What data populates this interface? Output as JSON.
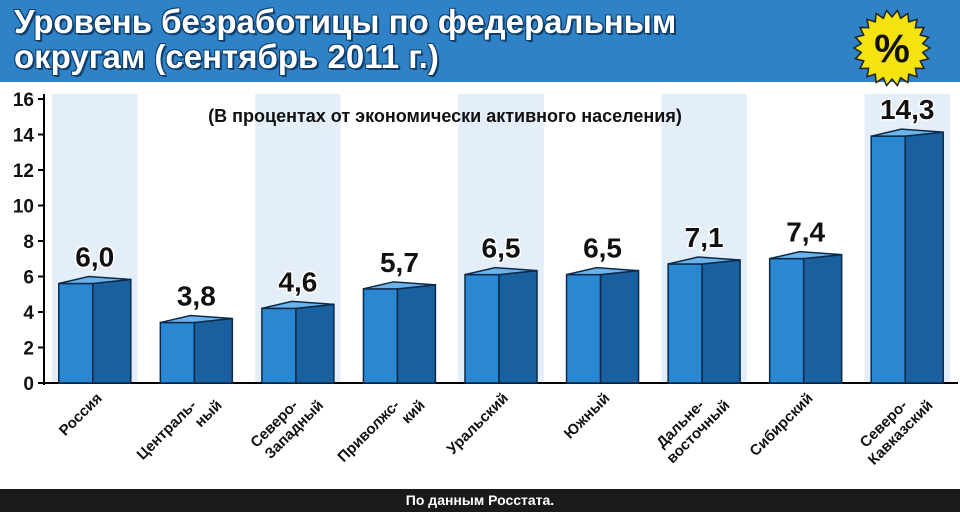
{
  "chart_data": {
    "type": "bar",
    "title": "Уровень безработицы по федеральным округам (сентябрь 2011 г.)",
    "title_lines": [
      "Уровень безработицы по федеральным",
      "округам (сентябрь 2011 г.)"
    ],
    "subtitle": "(В процентах от экономически активного населения)",
    "categories": [
      [
        "Россия"
      ],
      [
        "Централь-",
        "ный"
      ],
      [
        "Северо-",
        "Западный"
      ],
      [
        "Приволжс-",
        "кий"
      ],
      [
        "Уральский"
      ],
      [
        "Южный"
      ],
      [
        "Дальне-",
        "восточный"
      ],
      [
        "Сибирский"
      ],
      [
        "Северо-",
        "Кавказский"
      ]
    ],
    "values": [
      6.0,
      3.8,
      4.6,
      5.7,
      6.5,
      6.5,
      7.1,
      7.4,
      14.3
    ],
    "value_labels": [
      "6,0",
      "3,8",
      "4,6",
      "5,7",
      "6,5",
      "6,5",
      "7,1",
      "7,4",
      "14,3"
    ],
    "ylim": [
      0,
      16
    ],
    "yticks": [
      0,
      2,
      4,
      6,
      8,
      10,
      12,
      14,
      16
    ],
    "xlabel": "",
    "ylabel": "",
    "grid": false,
    "badge": "%",
    "source": "По данным Росстата.",
    "colors": {
      "header": "#2f82c6",
      "plot_bg": "#e3eef8",
      "bar_front": "#2a87d2",
      "bar_side": "#1a5f9e",
      "bar_top": "#6cb3ea",
      "outline": "#0b2a4a",
      "badge": "#f5e211"
    }
  }
}
